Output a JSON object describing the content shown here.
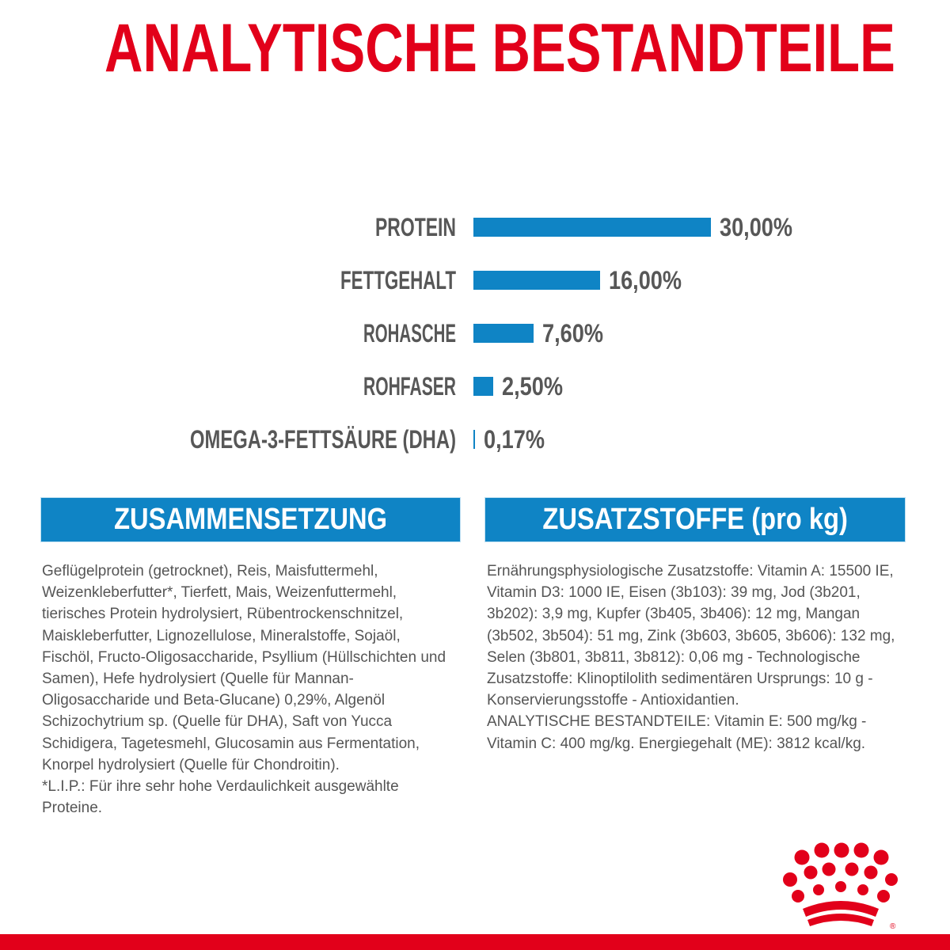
{
  "title": "ANALYTISCHE BESTANDTEILE",
  "colors": {
    "brand_red": "#e2001a",
    "bar_blue": "#0f84c5",
    "text_gray": "#575757"
  },
  "chart_data": {
    "type": "bar",
    "orientation": "horizontal",
    "categories": [
      "PROTEIN",
      "FETTGEHALT",
      "ROHASCHE",
      "ROHFASER",
      "OMEGA-3-FETTSÄURE (DHA)"
    ],
    "values": [
      30.0,
      16.0,
      7.6,
      2.5,
      0.17
    ],
    "value_labels": [
      "30,00%",
      "16,00%",
      "7,60%",
      "2,50%",
      "0,17%"
    ],
    "unit": "%",
    "xlim": [
      0,
      30
    ],
    "grid": false
  },
  "composition": {
    "header": "ZUSAMMENSETZUNG",
    "text": "Geflügelprotein (getrocknet), Reis, Maisfuttermehl, Weizenkleberfutter*, Tierfett, Mais, Weizenfuttermehl, tierisches Protein hydrolysiert, Rübentrockenschnitzel, Maiskleberfutter, Lignozellulose, Mineralstoffe, Sojaöl, Fischöl, Fructo-Oligosaccharide, Psyllium (Hüllschichten und Samen), Hefe hydrolysiert (Quelle für Mannan-Oligosaccharide und Beta-Glucane) 0,29%, Algenöl Schizochytrium sp. (Quelle für DHA), Saft von Yucca Schidigera, Tagetesmehl, Glucosamin aus Fermentation, Knorpel hydrolysiert (Quelle für Chondroitin).\n*L.I.P.: Für ihre sehr hohe Verdaulichkeit ausgewählte Proteine."
  },
  "additives": {
    "header": "ZUSATZSTOFFE (pro kg)",
    "text": "Ernährungsphysiologische Zusatzstoffe: Vitamin A: 15500 IE, Vitamin D3: 1000 IE, Eisen (3b103): 39 mg, Jod (3b201, 3b202): 3,9 mg, Kupfer (3b405, 3b406): 12 mg, Mangan (3b502, 3b504): 51 mg, Zink (3b603, 3b605, 3b606): 132 mg, Selen (3b801, 3b811, 3b812): 0,06 mg - Technologische Zusatzstoffe: Klinoptilolith sedimentären Ursprungs: 10 g - Konservierungsstoffe - Antioxidantien.\nANALYTISCHE BESTANDTEILE: Vitamin E: 500 mg/kg - Vitamin C: 400 mg/kg. Energiegehalt (ME): 3812 kcal/kg."
  },
  "logo": {
    "icon": "royal-canin-crown-icon",
    "registered_mark": "®"
  }
}
